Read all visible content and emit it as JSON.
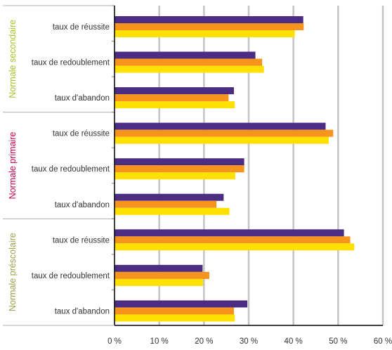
{
  "chart_data": {
    "type": "bar",
    "orientation": "horizontal",
    "groups": [
      {
        "name": "Normale secondaire",
        "color": "#a8c22a",
        "categories": [
          "taux de réussite",
          "taux de redoublement",
          "taux d'abandon"
        ]
      },
      {
        "name": "Normale primaire",
        "color": "#c8004b",
        "categories": [
          "taux de réussite",
          "taux de redoublement",
          "taux d'abandon"
        ]
      },
      {
        "name": "Normale préscolaire",
        "color": "#9aa04a",
        "categories": [
          "taux de réussite",
          "taux de redoublement",
          "taux d'abandon"
        ]
      }
    ],
    "series": [
      {
        "color": "#4b2e83",
        "values": [
          42.2,
          31.5,
          26.7,
          47.2,
          29.0,
          24.4,
          51.3,
          19.7,
          29.7
        ]
      },
      {
        "color": "#f7941d",
        "values": [
          42.3,
          33.0,
          25.5,
          48.9,
          29.0,
          22.8,
          52.7,
          21.2,
          26.7
        ]
      },
      {
        "color": "#ffe000",
        "values": [
          40.3,
          33.4,
          26.9,
          47.9,
          27.0,
          25.7,
          53.6,
          19.8,
          26.9
        ]
      }
    ],
    "xlim": [
      0,
      60
    ],
    "xticks": [
      "0 %",
      "10 %",
      "20 %",
      "30 %",
      "40 %",
      "50 %",
      "60 %"
    ],
    "grid": true
  }
}
